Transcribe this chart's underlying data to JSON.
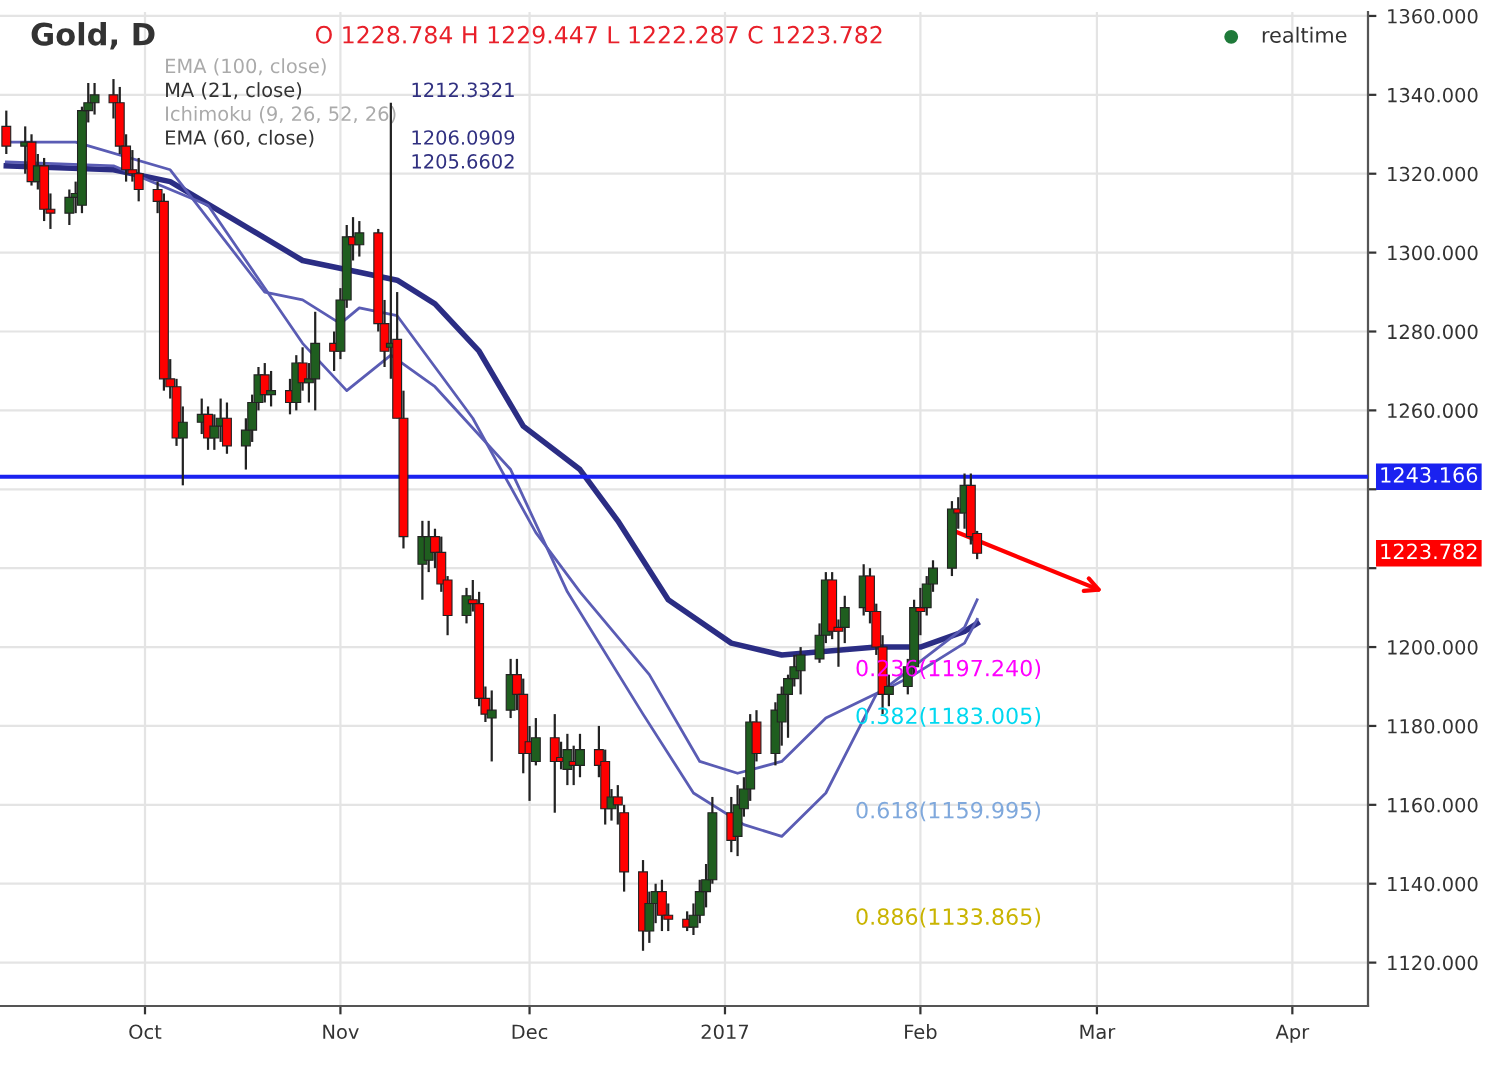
{
  "chart_data": {
    "type": "candlestick",
    "title": "Gold, D",
    "x": [
      "2016-09-09",
      "2016-09-12",
      "2016-09-13",
      "2016-09-14",
      "2016-09-15",
      "2016-09-16",
      "2016-09-19",
      "2016-09-20",
      "2016-09-21",
      "2016-09-22",
      "2016-09-23",
      "2016-09-26",
      "2016-09-27",
      "2016-09-28",
      "2016-09-29",
      "2016-09-30",
      "2016-10-03",
      "2016-10-04",
      "2016-10-05",
      "2016-10-06",
      "2016-10-07",
      "2016-10-10",
      "2016-10-11",
      "2016-10-12",
      "2016-10-13",
      "2016-10-14",
      "2016-10-17",
      "2016-10-18",
      "2016-10-19",
      "2016-10-20",
      "2016-10-21",
      "2016-10-24",
      "2016-10-25",
      "2016-10-26",
      "2016-10-27",
      "2016-10-28",
      "2016-10-31",
      "2016-11-01",
      "2016-11-02",
      "2016-11-03",
      "2016-11-04",
      "2016-11-07",
      "2016-11-08",
      "2016-11-09",
      "2016-11-10",
      "2016-11-11",
      "2016-11-14",
      "2016-11-15",
      "2016-11-16",
      "2016-11-17",
      "2016-11-18",
      "2016-11-21",
      "2016-11-22",
      "2016-11-23",
      "2016-11-24",
      "2016-11-25",
      "2016-11-28",
      "2016-11-29",
      "2016-11-30",
      "2016-12-01",
      "2016-12-02",
      "2016-12-05",
      "2016-12-06",
      "2016-12-07",
      "2016-12-08",
      "2016-12-09",
      "2016-12-12",
      "2016-12-13",
      "2016-12-14",
      "2016-12-15",
      "2016-12-16",
      "2016-12-19",
      "2016-12-20",
      "2016-12-21",
      "2016-12-22",
      "2016-12-23",
      "2016-12-26",
      "2016-12-27",
      "2016-12-28",
      "2016-12-29",
      "2016-12-30",
      "2017-01-02",
      "2017-01-03",
      "2017-01-04",
      "2017-01-05",
      "2017-01-06",
      "2017-01-09",
      "2017-01-10",
      "2017-01-11",
      "2017-01-12",
      "2017-01-13",
      "2017-01-16",
      "2017-01-17",
      "2017-01-18",
      "2017-01-19",
      "2017-01-20",
      "2017-01-23",
      "2017-01-24",
      "2017-01-25",
      "2017-01-26",
      "2017-01-27",
      "2017-01-30",
      "2017-01-31",
      "2017-02-01",
      "2017-02-02",
      "2017-02-03",
      "2017-02-06",
      "2017-02-07",
      "2017-02-08",
      "2017-02-09",
      "2017-02-10"
    ],
    "ohlc": [
      [
        1332,
        1336,
        1325,
        1327
      ],
      [
        1327,
        1332,
        1320,
        1328
      ],
      [
        1328,
        1330,
        1317,
        1318
      ],
      [
        1318,
        1325,
        1316,
        1322
      ],
      [
        1322,
        1324,
        1308,
        1311
      ],
      [
        1311,
        1315,
        1306,
        1310
      ],
      [
        1310,
        1316,
        1307,
        1314
      ],
      [
        1314,
        1318,
        1310,
        1315
      ],
      [
        1312,
        1337,
        1310,
        1336
      ],
      [
        1336,
        1343,
        1333,
        1338
      ],
      [
        1338,
        1343,
        1335,
        1340
      ],
      [
        1340,
        1344,
        1334,
        1338
      ],
      [
        1338,
        1342,
        1325,
        1327
      ],
      [
        1327,
        1330,
        1318,
        1321
      ],
      [
        1321,
        1326,
        1318,
        1320
      ],
      [
        1320,
        1324,
        1313,
        1316
      ],
      [
        1316,
        1318,
        1310,
        1313
      ],
      [
        1313,
        1315,
        1265,
        1268
      ],
      [
        1268,
        1273,
        1263,
        1266
      ],
      [
        1266,
        1268,
        1251,
        1253
      ],
      [
        1253,
        1261,
        1241,
        1257
      ],
      [
        1257,
        1263,
        1254,
        1259
      ],
      [
        1259,
        1261,
        1250,
        1253
      ],
      [
        1253,
        1259,
        1250,
        1256
      ],
      [
        1256,
        1263,
        1252,
        1258
      ],
      [
        1258,
        1262,
        1249,
        1251
      ],
      [
        1251,
        1258,
        1245,
        1255
      ],
      [
        1255,
        1264,
        1252,
        1262
      ],
      [
        1262,
        1271,
        1260,
        1269
      ],
      [
        1269,
        1272,
        1262,
        1264
      ],
      [
        1264,
        1270,
        1261,
        1265
      ],
      [
        1265,
        1268,
        1259,
        1262
      ],
      [
        1262,
        1274,
        1260,
        1272
      ],
      [
        1272,
        1276,
        1265,
        1267
      ],
      [
        1267,
        1272,
        1262,
        1268
      ],
      [
        1268,
        1285,
        1260,
        1277
      ],
      [
        1277,
        1280,
        1270,
        1275
      ],
      [
        1275,
        1291,
        1273,
        1288
      ],
      [
        1288,
        1307,
        1286,
        1304
      ],
      [
        1304,
        1309,
        1298,
        1302
      ],
      [
        1302,
        1308,
        1299,
        1305
      ],
      [
        1305,
        1306,
        1280,
        1282
      ],
      [
        1282,
        1288,
        1271,
        1275
      ],
      [
        1276,
        1338,
        1268,
        1277
      ],
      [
        1278,
        1290,
        1258,
        1258
      ],
      [
        1258,
        1265,
        1225,
        1228
      ],
      [
        1221,
        1232,
        1212,
        1228
      ],
      [
        1222,
        1232,
        1219,
        1228
      ],
      [
        1228,
        1230,
        1220,
        1224
      ],
      [
        1224,
        1228,
        1214,
        1216
      ],
      [
        1217,
        1218,
        1203,
        1208
      ],
      [
        1208,
        1215,
        1206,
        1213
      ],
      [
        1212,
        1217,
        1209,
        1211
      ],
      [
        1211,
        1214,
        1185,
        1187
      ],
      [
        1187,
        1190,
        1181,
        1183
      ],
      [
        1182,
        1189,
        1171,
        1184
      ],
      [
        1184,
        1197,
        1182,
        1193
      ],
      [
        1193,
        1197,
        1184,
        1188
      ],
      [
        1188,
        1192,
        1168,
        1173
      ],
      [
        1176,
        1180,
        1161,
        1173
      ],
      [
        1171,
        1182,
        1170,
        1177
      ],
      [
        1177,
        1183,
        1158,
        1171
      ],
      [
        1172,
        1176,
        1169,
        1171
      ],
      [
        1169,
        1178,
        1165,
        1174
      ],
      [
        1171,
        1175,
        1165,
        1170
      ],
      [
        1170,
        1178,
        1167,
        1174
      ],
      [
        1174,
        1180,
        1167,
        1170
      ],
      [
        1171,
        1174,
        1155,
        1159
      ],
      [
        1159,
        1164,
        1156,
        1162
      ],
      [
        1162,
        1165,
        1155,
        1160
      ],
      [
        1158,
        1160,
        1138,
        1143
      ],
      [
        1143,
        1146,
        1123,
        1128
      ],
      [
        1128,
        1138,
        1125,
        1135
      ],
      [
        1135,
        1140,
        1130,
        1138
      ],
      [
        1138,
        1141,
        1128,
        1132
      ],
      [
        1132,
        1135,
        1128,
        1131
      ],
      [
        1131,
        1133,
        1128,
        1129
      ],
      [
        1129,
        1135,
        1127,
        1132
      ],
      [
        1132,
        1141,
        1130,
        1138
      ],
      [
        1138,
        1145,
        1134,
        1141
      ],
      [
        1141,
        1162,
        1140,
        1158
      ],
      [
        1158,
        1162,
        1148,
        1151
      ],
      [
        1152,
        1165,
        1147,
        1160
      ],
      [
        1159,
        1167,
        1157,
        1164
      ],
      [
        1164,
        1183,
        1161,
        1181
      ],
      [
        1181,
        1184,
        1171,
        1173
      ],
      [
        1173,
        1186,
        1170,
        1184
      ],
      [
        1181,
        1190,
        1175,
        1188
      ],
      [
        1188,
        1193,
        1177,
        1192
      ],
      [
        1192,
        1198,
        1190,
        1195
      ],
      [
        1194,
        1200,
        1188,
        1198
      ],
      [
        1197,
        1206,
        1196,
        1203
      ],
      [
        1203,
        1219,
        1201,
        1217
      ],
      [
        1217,
        1219,
        1202,
        1204
      ],
      [
        1205,
        1207,
        1195,
        1204
      ],
      [
        1205,
        1213,
        1201,
        1210
      ],
      [
        1210,
        1221,
        1208,
        1218
      ],
      [
        1218,
        1220,
        1206,
        1209
      ],
      [
        1209,
        1211,
        1198,
        1200
      ],
      [
        1200,
        1203,
        1183,
        1188
      ],
      [
        1188,
        1193,
        1185,
        1190
      ],
      [
        1190,
        1197,
        1188,
        1195
      ],
      [
        1195,
        1212,
        1193,
        1210
      ],
      [
        1210,
        1215,
        1203,
        1209
      ],
      [
        1210,
        1218,
        1208,
        1216
      ],
      [
        1216,
        1222,
        1214,
        1220
      ],
      [
        1220,
        1237,
        1218,
        1235
      ],
      [
        1235,
        1238,
        1230,
        1234
      ],
      [
        1234,
        1244,
        1230,
        1241
      ],
      [
        1241,
        1244,
        1226,
        1228
      ],
      [
        1228.784,
        1229.447,
        1222.287,
        1223.782
      ]
    ],
    "series": [
      {
        "type": "line",
        "color": "#2b2d84",
        "x": [
          "2016-09-09",
          "2016-09-26",
          "2016-10-05",
          "2016-10-26",
          "2016-11-04",
          "2016-11-10",
          "2016-11-16",
          "2016-11-23",
          "2016-11-30",
          "2016-12-09",
          "2016-12-15",
          "2016-12-23",
          "2017-01-02",
          "2017-01-10",
          "2017-01-25",
          "2017-02-01",
          "2017-02-08",
          "2017-02-10"
        ],
        "values": [
          1322,
          1321,
          1318,
          1298,
          1295,
          1293,
          1287,
          1275,
          1256,
          1245,
          1232,
          1212,
          1201,
          1198,
          1200,
          1200,
          1204,
          1206
        ]
      },
      {
        "type": "line",
        "color": "#5a5cb4",
        "x": [
          "2016-09-09",
          "2016-09-20",
          "2016-10-05",
          "2016-10-20",
          "2016-10-26",
          "2016-11-01",
          "2016-11-04",
          "2016-11-10",
          "2016-11-22",
          "2016-12-02",
          "2016-12-09",
          "2016-12-20",
          "2016-12-28",
          "2017-01-03",
          "2017-01-10",
          "2017-01-17",
          "2017-01-26",
          "2017-02-08",
          "2017-02-10"
        ],
        "values": [
          1328,
          1328,
          1321,
          1290,
          1288,
          1282,
          1286,
          1284,
          1258,
          1229,
          1214,
          1193,
          1171,
          1168,
          1171,
          1182,
          1189,
          1205,
          1212
        ]
      },
      {
        "type": "line",
        "color": "#5a5cb4",
        "x": [
          "2016-09-09",
          "2016-09-26",
          "2016-10-11",
          "2016-10-26",
          "2016-11-02",
          "2016-11-09",
          "2016-11-16",
          "2016-11-28",
          "2016-12-07",
          "2016-12-19",
          "2016-12-27",
          "2017-01-04",
          "2017-01-10",
          "2017-01-17",
          "2017-01-25",
          "2017-01-31",
          "2017-02-08",
          "2017-02-10"
        ],
        "values": [
          1323,
          1322,
          1312,
          1277,
          1265,
          1274,
          1266,
          1245,
          1214,
          1183,
          1163,
          1155,
          1152,
          1163,
          1188,
          1193,
          1201,
          1207
        ]
      }
    ],
    "xlim": [
      "2016-09-08",
      "2017-04-13"
    ],
    "xticks": [
      {
        "value": "2016-10-01",
        "label": "Oct"
      },
      {
        "value": "2016-11-01",
        "label": "Nov"
      },
      {
        "value": "2016-12-01",
        "label": "Dec"
      },
      {
        "value": "2017-01-01",
        "label": "2017"
      },
      {
        "value": "2017-02-01",
        "label": "Feb"
      },
      {
        "value": "2017-03-01",
        "label": "Mar"
      },
      {
        "value": "2017-04-01",
        "label": "Apr"
      }
    ],
    "ylim": [
      1109,
      1361
    ],
    "yticks": [
      {
        "value": 1120,
        "label": "1120.000"
      },
      {
        "value": 1140,
        "label": "1140.000"
      },
      {
        "value": 1160,
        "label": "1160.000"
      },
      {
        "value": 1180,
        "label": "1180.000"
      },
      {
        "value": 1200,
        "label": "1200.000"
      },
      {
        "value": 1220,
        "label": null
      },
      {
        "value": 1240,
        "label": null
      },
      {
        "value": 1260,
        "label": "1260.000"
      },
      {
        "value": 1280,
        "label": "1280.000"
      },
      {
        "value": 1300,
        "label": "1300.000"
      },
      {
        "value": 1320,
        "label": "1320.000"
      },
      {
        "value": 1340,
        "label": "1340.000"
      },
      {
        "value": 1360,
        "label": "1360.000"
      }
    ],
    "grid": true,
    "ref_lines": [
      {
        "axis": "y",
        "value": 1243.166,
        "label": "1243.166",
        "color": "#1a22f0"
      }
    ],
    "annotations": [
      "O 1228.784 H 1229.447 L 1222.287 C 1223.782",
      "realtime",
      "EMA (100, close)",
      "MA (21, close)",
      "1212.3321",
      "Ichimoku (9, 26, 52, 26)",
      "EMA (60, close)",
      "1206.0909",
      "1205.6602",
      "0.236(1197.240)",
      "0.382(1183.005)",
      "0.618(1159.995)",
      "0.886(1133.865)",
      "1223.782"
    ]
  }
}
